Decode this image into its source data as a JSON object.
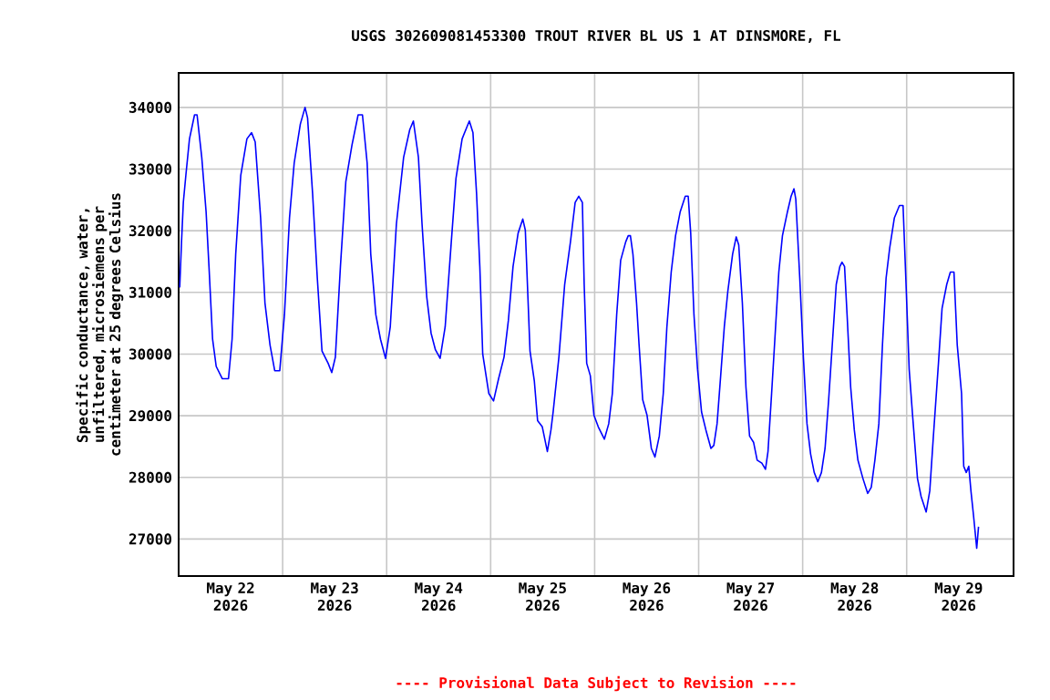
{
  "chart_data": {
    "type": "line",
    "title": "USGS 302609081453300 TROUT RIVER BL US 1 AT DINSMORE, FL",
    "ylabel": "Specific conductance, water, unfiltered, microsiemens per centimeter at 25 degrees Celsius",
    "annotations": [
      "---- Provisional Data Subject to Revision ----"
    ],
    "xlim": [
      "2026-05-22T00:00",
      "2026-05-30T00:40"
    ],
    "xticks": [
      {
        "value": "2026-05-22T12:00",
        "label": "May 22 2026"
      },
      {
        "value": "2026-05-23T12:00",
        "label": "May 23 2026"
      },
      {
        "value": "2026-05-24T12:00",
        "label": "May 24 2026"
      },
      {
        "value": "2026-05-25T12:00",
        "label": "May 25 2026"
      },
      {
        "value": "2026-05-26T12:00",
        "label": "May 26 2026"
      },
      {
        "value": "2026-05-27T12:00",
        "label": "May 27 2026"
      },
      {
        "value": "2026-05-28T12:00",
        "label": "May 28 2026"
      },
      {
        "value": "2026-05-29T12:00",
        "label": "May 29 2026"
      },
      {
        "value": "2026-05-23T00:00",
        "label": null
      },
      {
        "value": "2026-05-24T00:00",
        "label": null
      },
      {
        "value": "2026-05-25T00:00",
        "label": null
      },
      {
        "value": "2026-05-26T00:00",
        "label": null
      },
      {
        "value": "2026-05-27T00:00",
        "label": null
      },
      {
        "value": "2026-05-28T00:00",
        "label": null
      },
      {
        "value": "2026-05-29T00:00",
        "label": null
      }
    ],
    "ylim": [
      26400,
      34560
    ],
    "yticks": [
      27000,
      28000,
      29000,
      30000,
      31000,
      32000,
      33000,
      34000
    ],
    "grid": true,
    "series": [
      {
        "color": "#0000ff",
        "x": [
          "2026-05-22T00:15",
          "2026-05-22T00:40",
          "2026-05-22T01:05",
          "2026-05-22T01:40",
          "2026-05-22T02:30",
          "2026-05-22T03:40",
          "2026-05-22T04:15",
          "2026-05-22T05:20",
          "2026-05-22T06:20",
          "2026-05-22T07:00",
          "2026-05-22T07:50",
          "2026-05-22T08:40",
          "2026-05-22T10:05",
          "2026-05-22T11:30",
          "2026-05-22T12:20",
          "2026-05-22T13:10",
          "2026-05-22T14:20",
          "2026-05-22T15:45",
          "2026-05-22T16:50",
          "2026-05-22T17:40",
          "2026-05-22T18:55",
          "2026-05-22T19:55",
          "2026-05-22T21:05",
          "2026-05-22T22:10",
          "2026-05-22T23:20",
          "2026-05-23T00:25",
          "2026-05-23T01:35",
          "2026-05-23T02:40",
          "2026-05-23T04:05",
          "2026-05-23T05:10",
          "2026-05-23T05:45",
          "2026-05-23T06:55",
          "2026-05-23T08:00",
          "2026-05-23T09:05",
          "2026-05-23T10:30",
          "2026-05-23T11:20",
          "2026-05-23T12:10",
          "2026-05-23T13:20",
          "2026-05-23T14:35",
          "2026-05-23T16:00",
          "2026-05-23T17:25",
          "2026-05-23T18:25",
          "2026-05-23T19:30",
          "2026-05-23T20:20",
          "2026-05-23T21:30",
          "2026-05-23T22:35",
          "2026-05-23T23:45",
          "2026-05-24T00:50",
          "2026-05-24T02:15",
          "2026-05-24T03:55",
          "2026-05-24T05:20",
          "2026-05-24T06:10",
          "2026-05-24T07:20",
          "2026-05-24T08:10",
          "2026-05-24T09:15",
          "2026-05-24T10:15",
          "2026-05-24T11:15",
          "2026-05-24T12:20",
          "2026-05-24T13:30",
          "2026-05-24T14:55",
          "2026-05-24T16:00",
          "2026-05-24T17:25",
          "2026-05-24T19:05",
          "2026-05-24T19:55",
          "2026-05-24T20:45",
          "2026-05-24T21:30",
          "2026-05-24T22:10",
          "2026-05-24T23:35",
          "2026-05-25T00:40",
          "2026-05-25T01:50",
          "2026-05-25T03:05",
          "2026-05-25T04:05",
          "2026-05-25T05:10",
          "2026-05-25T06:20",
          "2026-05-25T07:25",
          "2026-05-25T08:00",
          "2026-05-25T09:05",
          "2026-05-25T10:05",
          "2026-05-25T10:50",
          "2026-05-25T11:55",
          "2026-05-25T13:05",
          "2026-05-25T13:55",
          "2026-05-25T14:25",
          "2026-05-25T15:45",
          "2026-05-25T17:05",
          "2026-05-25T18:25",
          "2026-05-25T19:30",
          "2026-05-25T20:20",
          "2026-05-25T21:10",
          "2026-05-25T21:35",
          "2026-05-25T22:10",
          "2026-05-25T23:00",
          "2026-05-25T23:50",
          "2026-05-26T00:50",
          "2026-05-26T02:15",
          "2026-05-26T03:15",
          "2026-05-26T04:05",
          "2026-05-26T05:05",
          "2026-05-26T06:00",
          "2026-05-26T07:10",
          "2026-05-26T07:45",
          "2026-05-26T08:15",
          "2026-05-26T08:50",
          "2026-05-26T09:40",
          "2026-05-26T10:15",
          "2026-05-26T11:05",
          "2026-05-26T12:05",
          "2026-05-26T13:05",
          "2026-05-26T13:55",
          "2026-05-26T14:55",
          "2026-05-26T15:50",
          "2026-05-26T16:40",
          "2026-05-26T17:40",
          "2026-05-26T18:40",
          "2026-05-26T19:45",
          "2026-05-26T20:55",
          "2026-05-26T21:35",
          "2026-05-26T22:10",
          "2026-05-26T22:55",
          "2026-05-26T23:45",
          "2026-05-27T00:40",
          "2026-05-27T01:40",
          "2026-05-27T02:50",
          "2026-05-27T03:30",
          "2026-05-27T04:15",
          "2026-05-27T05:05",
          "2026-05-27T05:55",
          "2026-05-27T06:45",
          "2026-05-27T07:50",
          "2026-05-27T08:40",
          "2026-05-27T09:15",
          "2026-05-27T10:05",
          "2026-05-27T10:55",
          "2026-05-27T11:45",
          "2026-05-27T12:40",
          "2026-05-27T13:30",
          "2026-05-27T14:35",
          "2026-05-27T15:25",
          "2026-05-27T16:00",
          "2026-05-27T16:50",
          "2026-05-27T17:40",
          "2026-05-27T18:30",
          "2026-05-27T19:20",
          "2026-05-27T20:30",
          "2026-05-27T21:20",
          "2026-05-27T22:00",
          "2026-05-27T22:25",
          "2026-05-27T23:20",
          "2026-05-28T00:10",
          "2026-05-28T01:00",
          "2026-05-28T01:50",
          "2026-05-28T02:40",
          "2026-05-28T03:30",
          "2026-05-28T04:20",
          "2026-05-28T05:10",
          "2026-05-28T06:00",
          "2026-05-28T06:55",
          "2026-05-28T07:45",
          "2026-05-28T08:35",
          "2026-05-28T09:05",
          "2026-05-28T09:40",
          "2026-05-28T10:15",
          "2026-05-28T11:05",
          "2026-05-28T11:55",
          "2026-05-28T12:45",
          "2026-05-28T13:55",
          "2026-05-28T15:00",
          "2026-05-28T15:50",
          "2026-05-28T16:40",
          "2026-05-28T17:35",
          "2026-05-28T18:25",
          "2026-05-28T19:15",
          "2026-05-28T20:05",
          "2026-05-28T21:10",
          "2026-05-28T22:20",
          "2026-05-28T23:10",
          "2026-05-28T23:45",
          "2026-05-29T00:35",
          "2026-05-29T01:25",
          "2026-05-29T02:30",
          "2026-05-29T03:20",
          "2026-05-29T04:30",
          "2026-05-29T05:20",
          "2026-05-29T06:10",
          "2026-05-29T07:20",
          "2026-05-29T08:10",
          "2026-05-29T09:15",
          "2026-05-29T10:05",
          "2026-05-29T10:55",
          "2026-05-29T11:40",
          "2026-05-29T12:40",
          "2026-05-29T13:10",
          "2026-05-29T13:45",
          "2026-05-29T14:20",
          "2026-05-29T14:50",
          "2026-05-29T15:25",
          "2026-05-29T16:10",
          "2026-05-29T16:35"
        ],
        "values": [
          31080,
          31820,
          32460,
          32900,
          33490,
          33880,
          33880,
          33190,
          32310,
          31420,
          30240,
          29800,
          29600,
          29600,
          30240,
          31620,
          32900,
          33490,
          33590,
          33440,
          32210,
          30830,
          30150,
          29730,
          29730,
          30640,
          32210,
          33100,
          33730,
          34000,
          33830,
          32600,
          31230,
          30050,
          29850,
          29700,
          29950,
          31420,
          32800,
          33390,
          33880,
          33880,
          33100,
          31620,
          30640,
          30240,
          29930,
          30440,
          32110,
          33190,
          33640,
          33780,
          33190,
          32110,
          30930,
          30340,
          30070,
          29930,
          30440,
          31820,
          32850,
          33490,
          33780,
          33590,
          32600,
          31420,
          30000,
          29360,
          29240,
          29600,
          29950,
          30540,
          31420,
          31960,
          32190,
          32010,
          30050,
          29560,
          28920,
          28820,
          28420,
          28770,
          29060,
          29950,
          31130,
          31820,
          32460,
          32560,
          32460,
          31130,
          29850,
          29650,
          29010,
          28820,
          28620,
          28870,
          29360,
          30640,
          31520,
          31820,
          31920,
          31920,
          31620,
          30830,
          30150,
          29260,
          29010,
          28470,
          28330,
          28670,
          29360,
          30440,
          31330,
          31920,
          32310,
          32560,
          32560,
          31960,
          30640,
          29750,
          29060,
          28770,
          28470,
          28520,
          28870,
          29650,
          30440,
          31030,
          31620,
          31900,
          31770,
          30830,
          29460,
          28670,
          28570,
          28280,
          28230,
          28130,
          28420,
          29360,
          30340,
          31330,
          31920,
          32310,
          32560,
          32680,
          32510,
          31230,
          29950,
          28870,
          28380,
          28080,
          27930,
          28080,
          28470,
          29260,
          30240,
          31130,
          31420,
          31490,
          31420,
          30640,
          29460,
          28770,
          28280,
          27980,
          27740,
          27840,
          28280,
          28870,
          30150,
          31230,
          31720,
          32210,
          32410,
          32410,
          31330,
          29750,
          28960,
          27980,
          27690,
          27440,
          27780,
          28670,
          29850,
          30740,
          31130,
          31330,
          31330,
          30150,
          29360,
          28180,
          28080,
          28180,
          27780,
          27390,
          26850,
          27200
        ]
      }
    ]
  }
}
